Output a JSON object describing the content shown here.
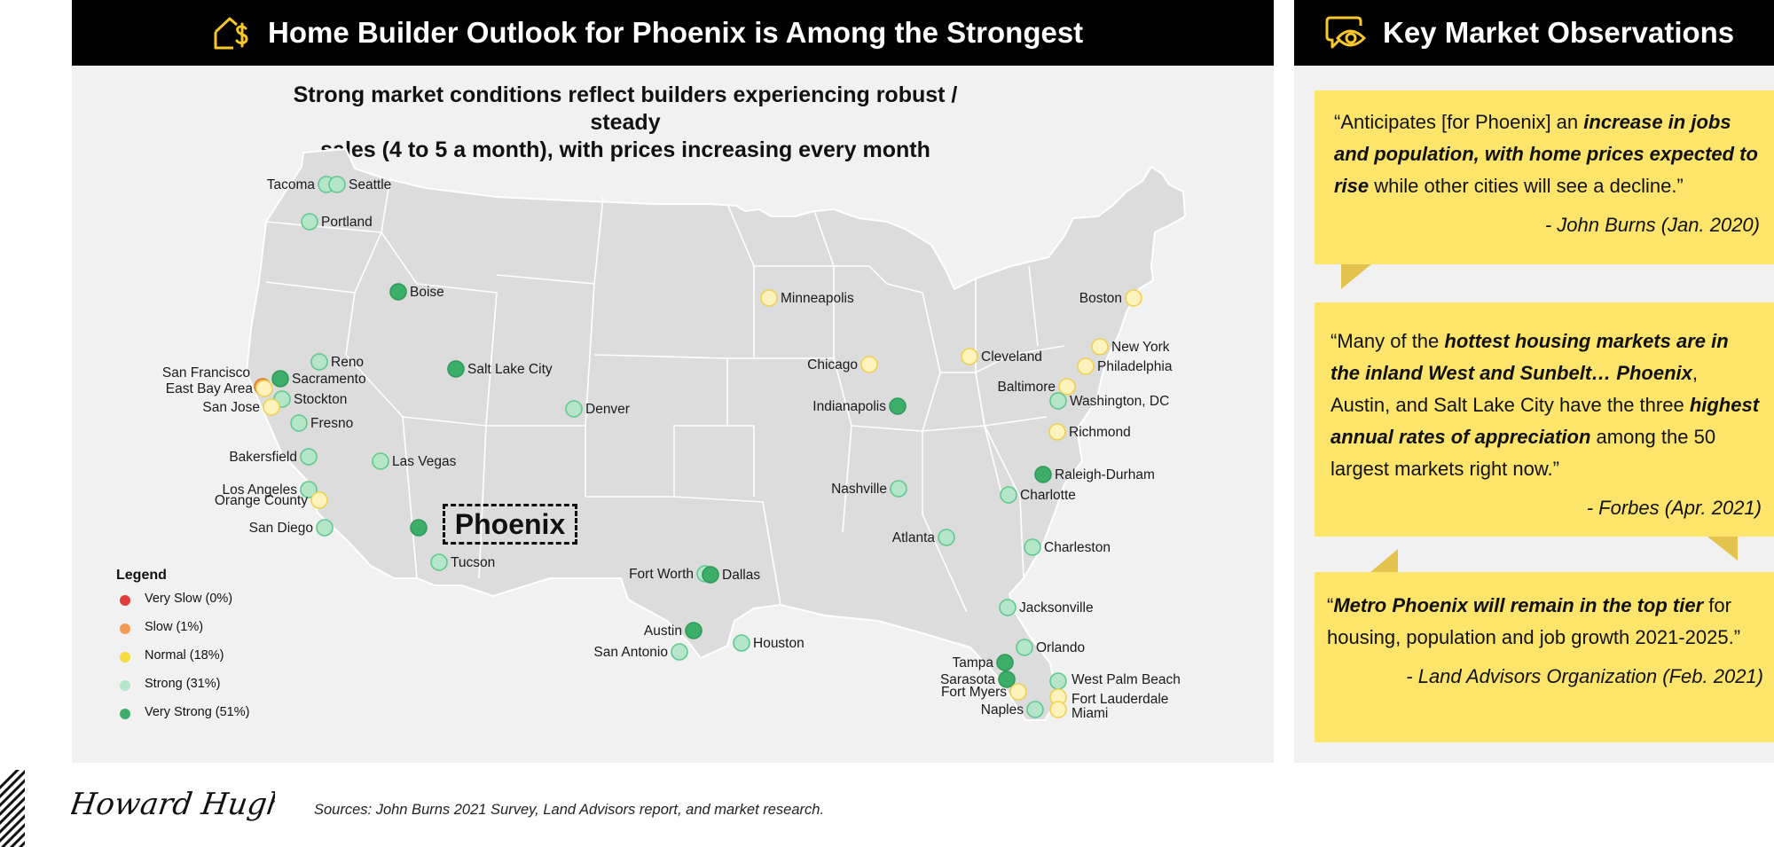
{
  "header": {
    "title": "Home Builder Outlook for Phoenix is Among the Strongest",
    "icon": "house-dollar-icon"
  },
  "subtitle": {
    "line1": "Strong market conditions reflect builders experiencing robust / steady",
    "line2": "sales (4 to 5 a month), with prices increasing every month"
  },
  "colors": {
    "very_strong": "#3cae6a",
    "strong": "#b5e6c9",
    "normal": "#fff3bd",
    "slow": "#f39a54",
    "very_slow": "#e23b3b",
    "quote_bg": "#fde46a",
    "map_land": "#dcdcdc",
    "panel_bg": "#f1f1f1"
  },
  "map": {
    "highlight_label": "Phoenix",
    "cities": [
      {
        "name": "Tacoma",
        "status": "strong"
      },
      {
        "name": "Seattle",
        "status": "strong"
      },
      {
        "name": "Portland",
        "status": "strong"
      },
      {
        "name": "Boise",
        "status": "very_strong"
      },
      {
        "name": "Reno",
        "status": "strong"
      },
      {
        "name": "San Francisco",
        "status": "slow"
      },
      {
        "name": "Sacramento",
        "status": "very_strong"
      },
      {
        "name": "East Bay Area",
        "status": "normal"
      },
      {
        "name": "Stockton",
        "status": "strong"
      },
      {
        "name": "San Jose",
        "status": "normal"
      },
      {
        "name": "Fresno",
        "status": "strong"
      },
      {
        "name": "Bakersfield",
        "status": "strong"
      },
      {
        "name": "Las Vegas",
        "status": "strong"
      },
      {
        "name": "Los Angeles",
        "status": "strong"
      },
      {
        "name": "Orange County",
        "status": "normal"
      },
      {
        "name": "San Diego",
        "status": "strong"
      },
      {
        "name": "Phoenix",
        "status": "very_strong"
      },
      {
        "name": "Tucson",
        "status": "strong"
      },
      {
        "name": "Salt Lake City",
        "status": "very_strong"
      },
      {
        "name": "Denver",
        "status": "strong"
      },
      {
        "name": "Minneapolis",
        "status": "normal"
      },
      {
        "name": "Chicago",
        "status": "normal"
      },
      {
        "name": "Indianapolis",
        "status": "very_strong"
      },
      {
        "name": "Nashville",
        "status": "strong"
      },
      {
        "name": "Atlanta",
        "status": "strong"
      },
      {
        "name": "Fort Worth",
        "status": "strong"
      },
      {
        "name": "Dallas",
        "status": "very_strong"
      },
      {
        "name": "Austin",
        "status": "very_strong"
      },
      {
        "name": "San Antonio",
        "status": "strong"
      },
      {
        "name": "Houston",
        "status": "strong"
      },
      {
        "name": "Cleveland",
        "status": "normal"
      },
      {
        "name": "Boston",
        "status": "normal"
      },
      {
        "name": "New York",
        "status": "normal"
      },
      {
        "name": "Philadelphia",
        "status": "normal"
      },
      {
        "name": "Baltimore",
        "status": "normal"
      },
      {
        "name": "Washington, DC",
        "status": "strong"
      },
      {
        "name": "Richmond",
        "status": "normal"
      },
      {
        "name": "Raleigh-Durham",
        "status": "very_strong"
      },
      {
        "name": "Charlotte",
        "status": "strong"
      },
      {
        "name": "Charleston",
        "status": "strong"
      },
      {
        "name": "Jacksonville",
        "status": "strong"
      },
      {
        "name": "Orlando",
        "status": "strong"
      },
      {
        "name": "Tampa",
        "status": "very_strong"
      },
      {
        "name": "Sarasota",
        "status": "very_strong"
      },
      {
        "name": "Fort Myers",
        "status": "normal"
      },
      {
        "name": "Naples",
        "status": "strong"
      },
      {
        "name": "West Palm Beach",
        "status": "strong"
      },
      {
        "name": "Fort Lauderdale",
        "status": "normal"
      },
      {
        "name": "Miami",
        "status": "normal"
      }
    ]
  },
  "legend": {
    "title": "Legend",
    "items": [
      {
        "label": "Very Slow (0%)",
        "status": "very_slow"
      },
      {
        "label": "Slow (1%)",
        "status": "slow"
      },
      {
        "label": "Normal (18%)",
        "status": "normal"
      },
      {
        "label": "Strong (31%)",
        "status": "strong"
      },
      {
        "label": "Very Strong (51%)",
        "status": "very_strong"
      }
    ]
  },
  "sidebar": {
    "title": "Key Market Observations",
    "icon": "eye-chat-icon",
    "quotes": [
      {
        "segments": [
          {
            "text": "“Anticipates [for Phoenix] an ",
            "style": "normal"
          },
          {
            "text": "increase in jobs and population, with home prices expected to rise",
            "style": "bi"
          },
          {
            "text": " while other cities will see a decline.”",
            "style": "normal"
          }
        ],
        "attribution": "- John Burns (Jan. 2020)"
      },
      {
        "segments": [
          {
            "text": "“Many of the ",
            "style": "normal"
          },
          {
            "text": "hottest housing markets are in the inland West and Sunbelt… Phoenix",
            "style": "bi"
          },
          {
            "text": ", Austin, and Salt Lake City have the three ",
            "style": "normal"
          },
          {
            "text": "highest annual rates of appreciation",
            "style": "bi"
          },
          {
            "text": " among the 50 largest markets right now.”",
            "style": "normal"
          }
        ],
        "attribution": "- Forbes (Apr. 2021)"
      },
      {
        "segments": [
          {
            "text": "“",
            "style": "normal"
          },
          {
            "text": "Metro Phoenix will remain in the top tier",
            "style": "bi"
          },
          {
            "text": " for housing, population and job growth 2021-2025.”",
            "style": "normal"
          }
        ],
        "attribution": "- Land Advisors Organization (Feb. 2021)"
      }
    ]
  },
  "footer": {
    "logo_text": "Howard Hughes.",
    "sources": "Sources: John Burns 2021 Survey, Land Advisors report, and market research."
  }
}
